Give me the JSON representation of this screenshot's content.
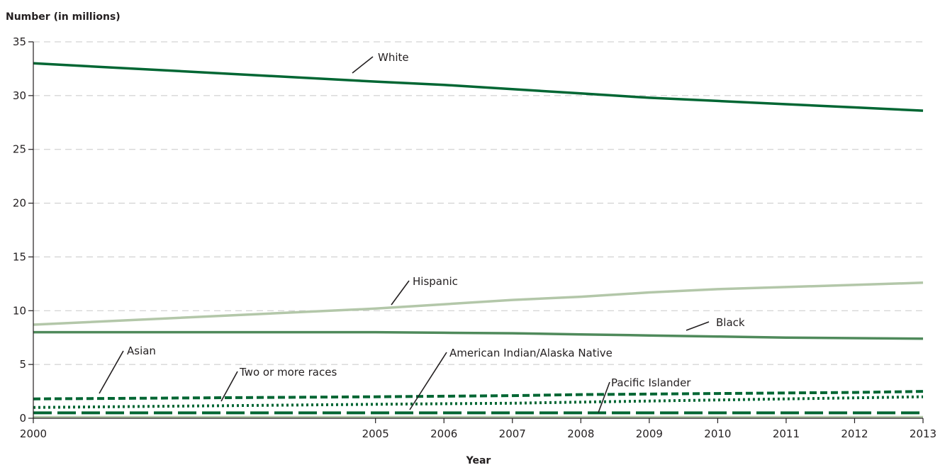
{
  "chart_data": {
    "type": "line",
    "ylabel": "Number (in millions)",
    "xlabel": "Year",
    "ylim": [
      0,
      35
    ],
    "yticks": [
      "0",
      "5",
      "10",
      "15",
      "20",
      "25",
      "30",
      "35"
    ],
    "x": [
      2000,
      2005,
      2006,
      2007,
      2008,
      2009,
      2010,
      2011,
      2012,
      2013
    ],
    "xtick_labels": [
      "2000",
      "2005",
      "2006",
      "2007",
      "2008",
      "2009",
      "2010",
      "2011",
      "2012",
      "2013"
    ],
    "grid": "horizontal dashed",
    "series": [
      {
        "name": "White",
        "values": [
          33.0,
          31.3,
          31.0,
          30.6,
          30.2,
          29.8,
          29.5,
          29.2,
          28.9,
          28.6
        ],
        "color": "#006633",
        "style": "solid"
      },
      {
        "name": "Hispanic",
        "values": [
          8.7,
          10.2,
          10.6,
          11.0,
          11.3,
          11.7,
          12.0,
          12.2,
          12.4,
          12.6
        ],
        "color": "#b3c7a9",
        "style": "solid"
      },
      {
        "name": "Black",
        "values": [
          8.0,
          8.0,
          7.95,
          7.9,
          7.8,
          7.7,
          7.6,
          7.5,
          7.45,
          7.4
        ],
        "color": "#4f8a5b",
        "style": "solid"
      },
      {
        "name": "Asian",
        "values": [
          1.8,
          2.0,
          2.05,
          2.1,
          2.2,
          2.25,
          2.3,
          2.35,
          2.4,
          2.5
        ],
        "color": "#006633",
        "style": "dashed"
      },
      {
        "name": "Two or more races",
        "values": [
          1.0,
          1.3,
          1.35,
          1.4,
          1.5,
          1.6,
          1.7,
          1.8,
          1.9,
          2.0
        ],
        "color": "#006633",
        "style": "dotted"
      },
      {
        "name": "American Indian/Alaska Native",
        "values": [
          0.5,
          0.5,
          0.5,
          0.5,
          0.5,
          0.5,
          0.5,
          0.5,
          0.5,
          0.5
        ],
        "color": "#006633",
        "style": "longdash"
      },
      {
        "name": "Pacific Islander",
        "values": [
          0.1,
          0.1,
          0.1,
          0.1,
          0.1,
          0.1,
          0.1,
          0.1,
          0.1,
          0.1
        ],
        "color": "#b3c7a9",
        "style": "solid"
      }
    ]
  }
}
